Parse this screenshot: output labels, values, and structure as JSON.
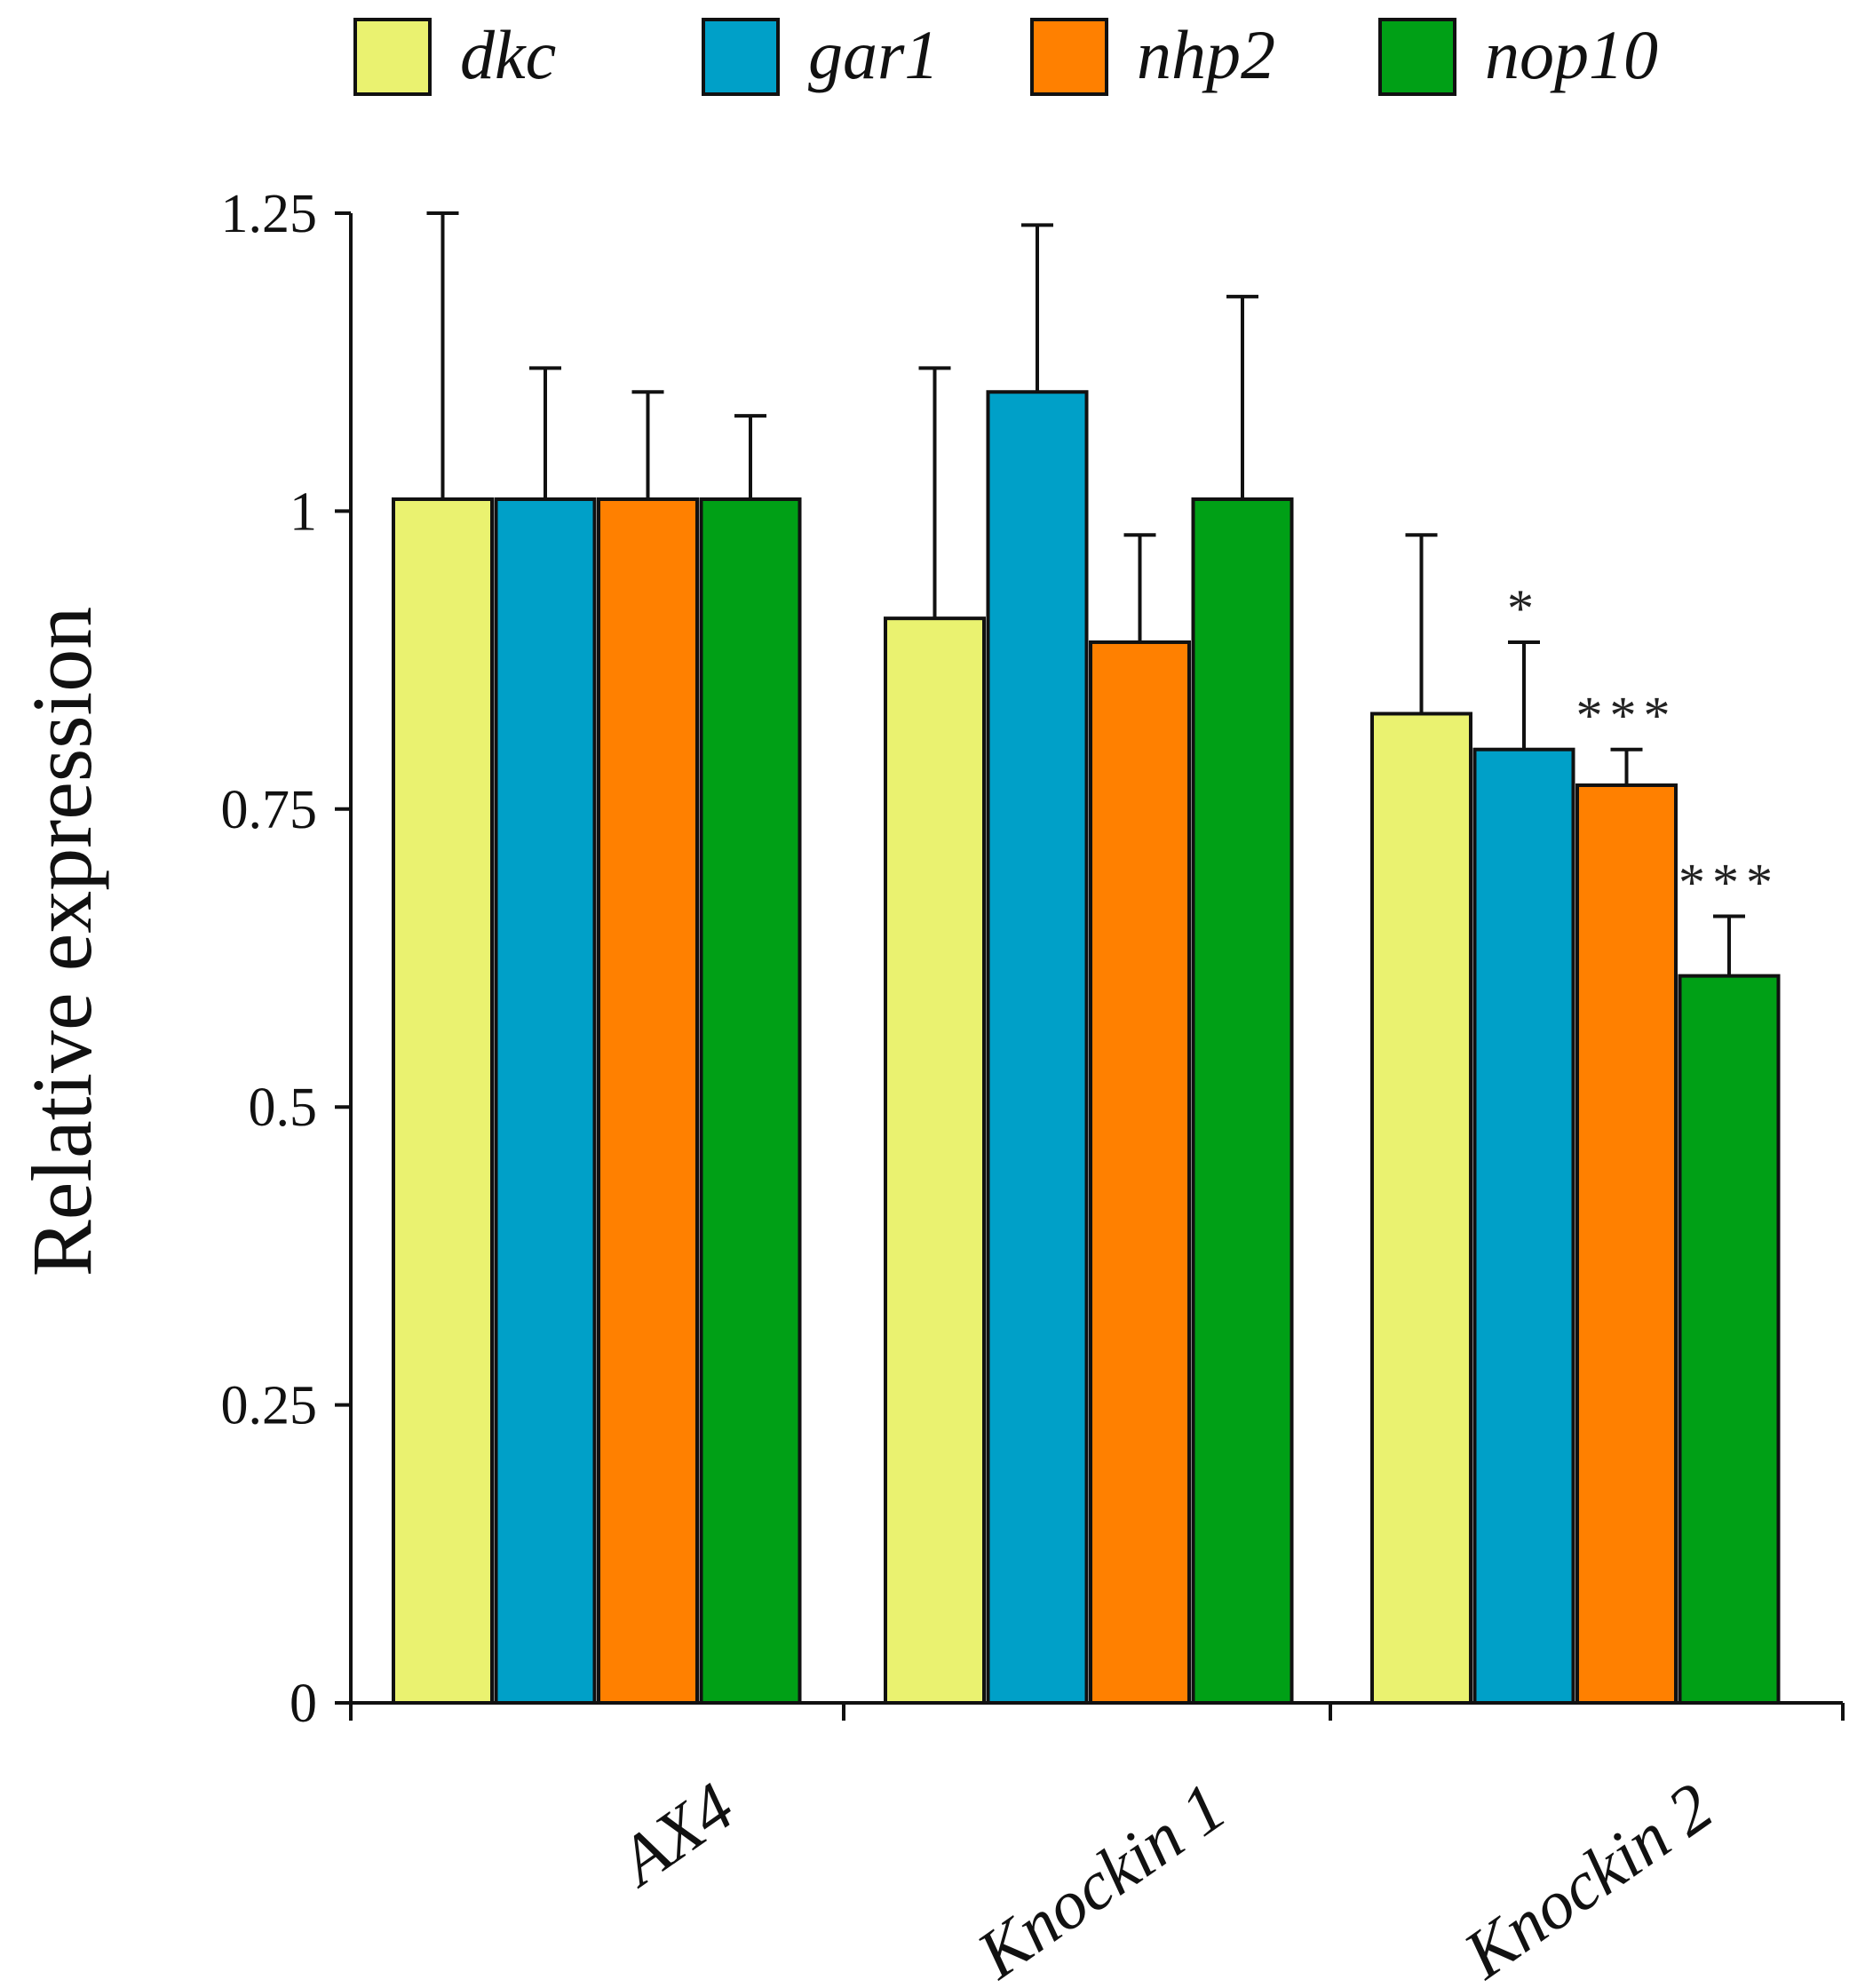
{
  "chart_data": {
    "type": "bar",
    "ylabel": "Relative expression",
    "ylim": [
      0,
      1.25
    ],
    "yticks": [
      "0",
      "0.25",
      "0.5",
      "0.75",
      "1",
      "1.25"
    ],
    "yticks_values": [
      0,
      0.25,
      0.5,
      0.75,
      1,
      1.25
    ],
    "categories": [
      "AX4",
      "Knockin 1",
      "Knockin 2"
    ],
    "legend_position": "top",
    "series": [
      {
        "name": "dkc",
        "color": "#eaf270",
        "values": [
          1.01,
          0.91,
          0.83
        ],
        "errors": [
          0.24,
          0.21,
          0.15
        ],
        "significance": [
          "",
          "",
          ""
        ]
      },
      {
        "name": "gar1",
        "color": "#00a0c8",
        "values": [
          1.01,
          1.1,
          0.8
        ],
        "errors": [
          0.11,
          0.14,
          0.09
        ],
        "significance": [
          "",
          "",
          "*"
        ]
      },
      {
        "name": "nhp2",
        "color": "#ff8000",
        "values": [
          1.01,
          0.89,
          0.77
        ],
        "errors": [
          0.09,
          0.09,
          0.03
        ],
        "significance": [
          "",
          "",
          "***"
        ]
      },
      {
        "name": "nop10",
        "color": "#00a016",
        "values": [
          1.01,
          1.01,
          0.61
        ],
        "errors": [
          0.07,
          0.17,
          0.05
        ],
        "significance": [
          "",
          "",
          "***"
        ]
      }
    ]
  }
}
